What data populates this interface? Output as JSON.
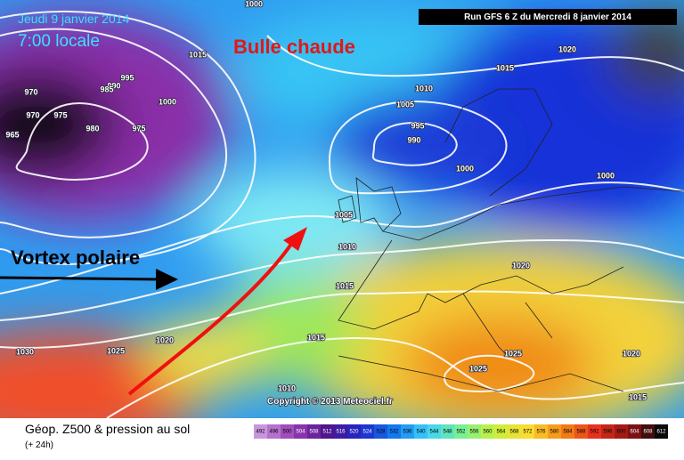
{
  "map": {
    "date": "Jeudi 9 janvier 2014",
    "time": "7:00 locale",
    "run": "Run GFS 6 Z du Mercredi 8 janvier 2014",
    "annotations": [
      "Bulle chaude",
      "Vortex polaire"
    ],
    "isobars": [
      1000,
      1015,
      995,
      990,
      985,
      970,
      1000,
      970,
      975,
      980,
      975,
      965,
      1010,
      1005,
      995,
      990,
      1000,
      1015,
      1020,
      1000,
      1005,
      1010,
      1015,
      1020,
      1015,
      1020,
      1025,
      1030,
      1025,
      1025,
      1020,
      1010,
      1015
    ],
    "copyright": "Copyright © 2013 Meteociel.fr",
    "legend": {
      "title": "Géop. Z500 & pression au sol",
      "lead": "(+ 24h)",
      "scale": [
        492,
        496,
        500,
        504,
        508,
        512,
        516,
        520,
        524,
        528,
        532,
        536,
        540,
        544,
        548,
        552,
        556,
        560,
        564,
        568,
        572,
        576,
        580,
        584,
        588,
        592,
        596,
        600,
        604,
        608,
        612
      ]
    }
  }
}
